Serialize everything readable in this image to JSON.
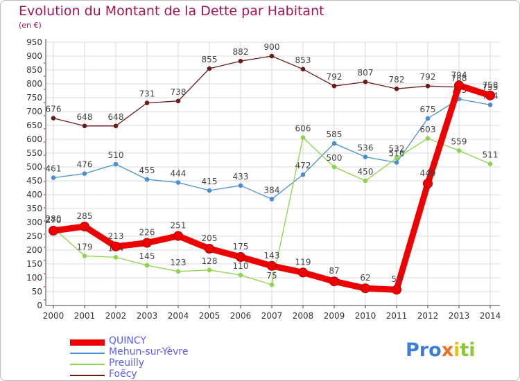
{
  "title": "Evolution du Montant de la Dette par Habitant",
  "unit": "(en €)",
  "logo": {
    "text": "Proxiti",
    "letters": [
      {
        "ch": "P",
        "color": "#3b7dd8"
      },
      {
        "ch": "r",
        "color": "#3b7dd8"
      },
      {
        "ch": "o",
        "color": "#3b7dd8"
      },
      {
        "ch": "x",
        "color": "#e8742c"
      },
      {
        "ch": "i",
        "color": "#e4c21c"
      },
      {
        "ch": "t",
        "color": "#8cc43c"
      },
      {
        "ch": "i",
        "color": "#8cc43c"
      }
    ]
  },
  "colors": {
    "QUINCY": "#ee0000",
    "Mehun-sur-Yèvre": "#4a90d0",
    "Preuilly": "#8cd44c",
    "Foëcy": "#6b1a1a",
    "grid": "#d9d9d9",
    "legend_text": "#5b5bff"
  },
  "chart_data": {
    "type": "line",
    "title": "Evolution du Montant de la Dette par Habitant",
    "ylabel": "(en €)",
    "x": [
      "2000",
      "2001",
      "2002",
      "2003",
      "2004",
      "2005",
      "2006",
      "2007",
      "2008",
      "2009",
      "2010",
      "2011",
      "2012",
      "2013",
      "2014"
    ],
    "y_ticks": [
      "0",
      "50",
      "100",
      "150",
      "200",
      "250",
      "300",
      "350",
      "400",
      "450",
      "500",
      "550",
      "600",
      "650",
      "700",
      "750",
      "800",
      "850",
      "900",
      "950"
    ],
    "ylim": [
      0,
      950
    ],
    "grid": true,
    "legend_position": "bottom-left",
    "series": [
      {
        "name": "QUINCY",
        "values": [
          270,
          285,
          213,
          226,
          251,
          205,
          175,
          143,
          119,
          87,
          62,
          57,
          440,
          794,
          758
        ]
      },
      {
        "name": "Mehun-sur-Yèvre",
        "values": [
          461,
          476,
          510,
          455,
          444,
          415,
          433,
          384,
          472,
          585,
          536,
          516,
          675,
          745,
          724
        ]
      },
      {
        "name": "Preuilly",
        "values": [
          280,
          179,
          174,
          145,
          123,
          128,
          110,
          75,
          606,
          500,
          450,
          532,
          603,
          559,
          511
        ]
      },
      {
        "name": "Foëcy",
        "values": [
          676,
          648,
          648,
          731,
          738,
          855,
          882,
          900,
          853,
          792,
          807,
          782,
          792,
          788,
          755
        ]
      }
    ],
    "data_labels": {
      "QUINCY": [
        "270",
        "285",
        "213",
        "226",
        "251",
        "205",
        "175",
        "143",
        "119",
        "87",
        "62",
        "57",
        "440",
        "794",
        "758"
      ],
      "Mehun-sur-Yèvre": [
        "461",
        "476",
        "510",
        "455",
        "444",
        "415",
        "433",
        "384",
        "472",
        "585",
        "536",
        "516",
        "675",
        "745",
        "724"
      ],
      "Preuilly": [
        "280",
        "179",
        "174",
        "145",
        "123",
        "128",
        "110",
        "75",
        "606",
        "500",
        "450",
        "532",
        "603",
        "559",
        "511"
      ],
      "Foëcy": [
        "676",
        "648",
        "648",
        "731",
        "738",
        "855",
        "882",
        "900",
        "853",
        "792",
        "807",
        "782",
        "792",
        "788",
        "755"
      ]
    }
  }
}
